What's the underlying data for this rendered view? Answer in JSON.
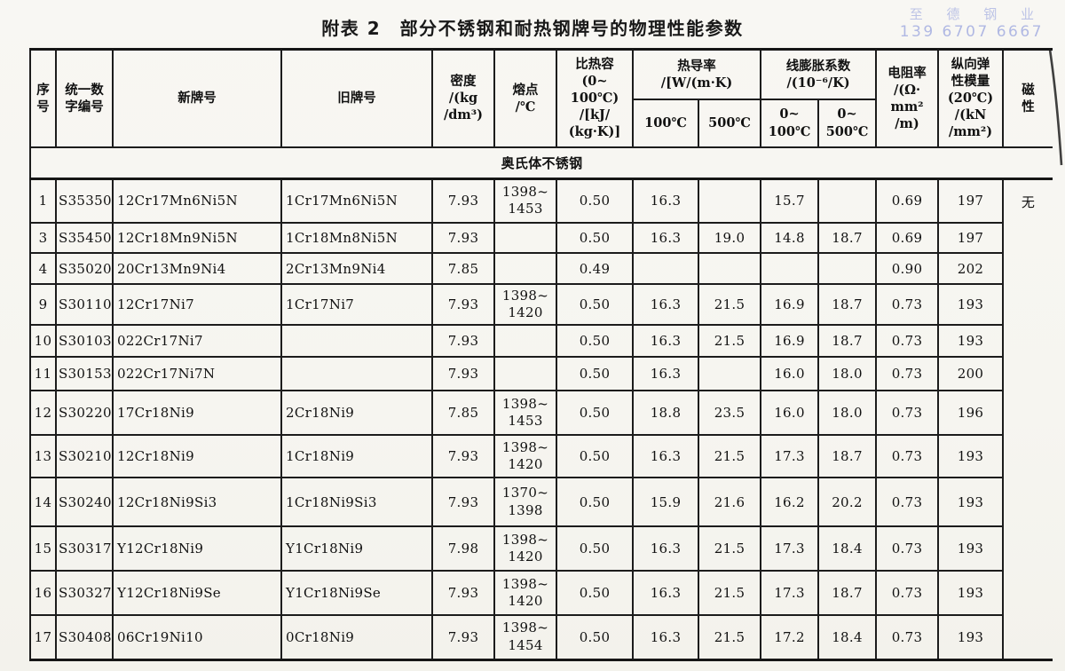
{
  "page": {
    "title": "附表 2　部分不锈钢和耐热钢牌号的物理性能参数",
    "watermark": {
      "company": "至 德 钢 业",
      "phone": "139 6707 6667",
      "color": "#a9b2e2"
    }
  },
  "table": {
    "section": "奥氏体不锈钢",
    "header": {
      "serial": [
        "序",
        "号"
      ],
      "unified_code": [
        "统一数",
        "字编号"
      ],
      "new_grade": [
        "新牌号"
      ],
      "old_grade": [
        "旧牌号"
      ],
      "density": [
        "密度",
        "/(kg",
        "/dm³)"
      ],
      "melting_point": [
        "熔点",
        "/℃"
      ],
      "specific_heat": [
        "比热容",
        "(0~",
        "100℃)",
        "/[kJ/",
        "(kg·K)]"
      ],
      "thermal_conductivity": [
        "热导率",
        "/[W/(m·K)"
      ],
      "tc_100": [
        "100℃"
      ],
      "tc_500": [
        "500℃"
      ],
      "expansion": [
        "线膨胀系数",
        "/(10⁻⁶/K)"
      ],
      "exp_0_100": [
        "0~",
        "100℃"
      ],
      "exp_0_500": [
        "0~",
        "500℃"
      ],
      "resistivity": [
        "电阻率",
        "/(Ω·",
        "mm²",
        "/m)"
      ],
      "elastic_modulus": [
        "纵向弹",
        "性模量",
        "(20℃)",
        "/(kN",
        "/mm²)"
      ],
      "magnetism": [
        "磁",
        "性"
      ]
    },
    "magnetism_value": "无",
    "rows": [
      {
        "serial": "1",
        "unified_code": "S35350",
        "new_grade": "12Cr17Mn6Ni5N",
        "old_grade": "1Cr17Mn6Ni5N",
        "density": "7.93",
        "melting_point": [
          "1398~",
          "1453"
        ],
        "specific_heat": "0.50",
        "tc_100": "16.3",
        "tc_500": "",
        "exp_0_100": "15.7",
        "exp_0_500": "",
        "resistivity": "0.69",
        "elastic_modulus": "197"
      },
      {
        "serial": "3",
        "unified_code": "S35450",
        "new_grade": "12Cr18Mn9Ni5N",
        "old_grade": "1Cr18Mn8Ni5N",
        "density": "7.93",
        "melting_point": "",
        "specific_heat": "0.50",
        "tc_100": "16.3",
        "tc_500": "19.0",
        "exp_0_100": "14.8",
        "exp_0_500": "18.7",
        "resistivity": "0.69",
        "elastic_modulus": "197"
      },
      {
        "serial": "4",
        "unified_code": "S35020",
        "new_grade": "20Cr13Mn9Ni4",
        "old_grade": "2Cr13Mn9Ni4",
        "density": "7.85",
        "melting_point": "",
        "specific_heat": "0.49",
        "tc_100": "",
        "tc_500": "",
        "exp_0_100": "",
        "exp_0_500": "",
        "resistivity": "0.90",
        "elastic_modulus": "202"
      },
      {
        "serial": "9",
        "unified_code": "S30110",
        "new_grade": "12Cr17Ni7",
        "old_grade": "1Cr17Ni7",
        "density": "7.93",
        "melting_point": [
          "1398~",
          "1420"
        ],
        "specific_heat": "0.50",
        "tc_100": "16.3",
        "tc_500": "21.5",
        "exp_0_100": "16.9",
        "exp_0_500": "18.7",
        "resistivity": "0.73",
        "elastic_modulus": "193"
      },
      {
        "serial": "10",
        "unified_code": "S30103",
        "new_grade": "022Cr17Ni7",
        "old_grade": "",
        "density": "7.93",
        "melting_point": "",
        "specific_heat": "0.50",
        "tc_100": "16.3",
        "tc_500": "21.5",
        "exp_0_100": "16.9",
        "exp_0_500": "18.7",
        "resistivity": "0.73",
        "elastic_modulus": "193"
      },
      {
        "serial": "11",
        "unified_code": "S30153",
        "new_grade": "022Cr17Ni7N",
        "old_grade": "",
        "density": "7.93",
        "melting_point": "",
        "specific_heat": "0.50",
        "tc_100": "16.3",
        "tc_500": "",
        "exp_0_100": "16.0",
        "exp_0_500": "18.0",
        "resistivity": "0.73",
        "elastic_modulus": "200"
      },
      {
        "serial": "12",
        "unified_code": "S30220",
        "new_grade": "17Cr18Ni9",
        "old_grade": "2Cr18Ni9",
        "density": "7.85",
        "melting_point": [
          "1398~",
          "1453"
        ],
        "specific_heat": "0.50",
        "tc_100": "18.8",
        "tc_500": "23.5",
        "exp_0_100": "16.0",
        "exp_0_500": "18.0",
        "resistivity": "0.73",
        "elastic_modulus": "196"
      },
      {
        "serial": "13",
        "unified_code": "S30210",
        "new_grade": "12Cr18Ni9",
        "old_grade": "1Cr18Ni9",
        "density": "7.93",
        "melting_point": [
          "1398~",
          "1420"
        ],
        "specific_heat": "0.50",
        "tc_100": "16.3",
        "tc_500": "21.5",
        "exp_0_100": "17.3",
        "exp_0_500": "18.7",
        "resistivity": "0.73",
        "elastic_modulus": "193"
      },
      {
        "serial": "14",
        "unified_code": "S30240",
        "new_grade": "12Cr18Ni9Si3",
        "old_grade": "1Cr18Ni9Si3",
        "density": "7.93",
        "melting_point": [
          "1370~",
          "1398"
        ],
        "specific_heat": "0.50",
        "tc_100": "15.9",
        "tc_500": "21.6",
        "exp_0_100": "16.2",
        "exp_0_500": "20.2",
        "resistivity": "0.73",
        "elastic_modulus": "193"
      },
      {
        "serial": "15",
        "unified_code": "S30317",
        "new_grade": "Y12Cr18Ni9",
        "old_grade": "Y1Cr18Ni9",
        "density": "7.98",
        "melting_point": [
          "1398~",
          "1420"
        ],
        "specific_heat": "0.50",
        "tc_100": "16.3",
        "tc_500": "21.5",
        "exp_0_100": "17.3",
        "exp_0_500": "18.4",
        "resistivity": "0.73",
        "elastic_modulus": "193"
      },
      {
        "serial": "16",
        "unified_code": "S30327",
        "new_grade": "Y12Cr18Ni9Se",
        "old_grade": "Y1Cr18Ni9Se",
        "density": "7.93",
        "melting_point": [
          "1398~",
          "1420"
        ],
        "specific_heat": "0.50",
        "tc_100": "16.3",
        "tc_500": "21.5",
        "exp_0_100": "17.3",
        "exp_0_500": "18.7",
        "resistivity": "0.73",
        "elastic_modulus": "193"
      },
      {
        "serial": "17",
        "unified_code": "S30408",
        "new_grade": "06Cr19Ni10",
        "old_grade": "0Cr18Ni9",
        "density": "7.93",
        "melting_point": [
          "1398~",
          "1454"
        ],
        "specific_heat": "0.50",
        "tc_100": "16.3",
        "tc_500": "21.5",
        "exp_0_100": "17.2",
        "exp_0_500": "18.4",
        "resistivity": "0.73",
        "elastic_modulus": "193"
      }
    ]
  }
}
